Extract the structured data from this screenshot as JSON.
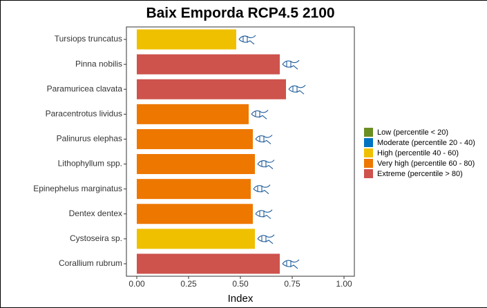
{
  "chart_data": {
    "type": "barh",
    "title": "Baix Emporda RCP4.5 2100",
    "xlabel": "Index",
    "categories": [
      "Tursiops truncatus",
      "Pinna nobilis",
      "Paramuricea clavata",
      "Paracentrotus lividus",
      "Palinurus elephas",
      "Lithophyllum spp.",
      "Epinephelus marginatus",
      "Dentex dentex",
      "Cystoseira sp.",
      "Corallium rubrum"
    ],
    "values": [
      0.48,
      0.69,
      0.72,
      0.54,
      0.56,
      0.57,
      0.55,
      0.56,
      0.57,
      0.69
    ],
    "bar_colors": [
      "#efc000",
      "#cd534c",
      "#cd534c",
      "#ee7700",
      "#ee7700",
      "#ee7700",
      "#ee7700",
      "#ee7700",
      "#efc000",
      "#cd534c"
    ],
    "xlim": [
      -0.05,
      1.05
    ],
    "xticks": [
      {
        "value": 0,
        "label": "0.00"
      },
      {
        "value": 0.25,
        "label": "0.25"
      },
      {
        "value": 0.5,
        "label": "0.50"
      },
      {
        "value": 0.75,
        "label": "0.75"
      },
      {
        "value": 1,
        "label": "1.00"
      }
    ],
    "grid": false,
    "legend": [
      {
        "name": "Low (percentile < 20)",
        "color": "#6b8e23"
      },
      {
        "name": "Moderate (percentile 20 - 40)",
        "color": "#0073c2"
      },
      {
        "name": "High (percentile 40 - 60)",
        "color": "#efc000"
      },
      {
        "name": "Very high (percentile 60 - 80)",
        "color": "#ee7700"
      },
      {
        "name": "Extreme (percentile > 80)",
        "color": "#cd534c"
      }
    ]
  }
}
